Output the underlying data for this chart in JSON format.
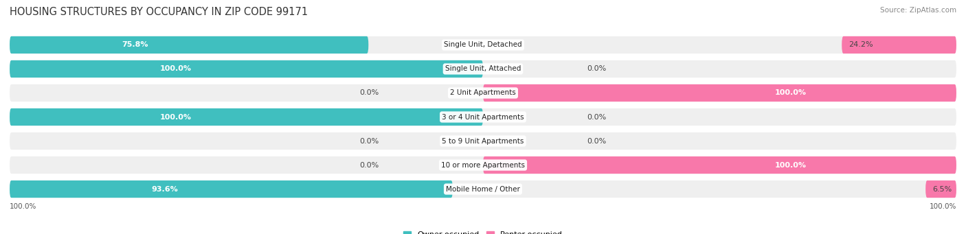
{
  "title": "HOUSING STRUCTURES BY OCCUPANCY IN ZIP CODE 99171",
  "source": "Source: ZipAtlas.com",
  "categories": [
    "Single Unit, Detached",
    "Single Unit, Attached",
    "2 Unit Apartments",
    "3 or 4 Unit Apartments",
    "5 to 9 Unit Apartments",
    "10 or more Apartments",
    "Mobile Home / Other"
  ],
  "owner_pct": [
    75.8,
    100.0,
    0.0,
    100.0,
    0.0,
    0.0,
    93.6
  ],
  "renter_pct": [
    24.2,
    0.0,
    100.0,
    0.0,
    0.0,
    100.0,
    6.5
  ],
  "owner_color": "#40bfbf",
  "renter_color": "#f878aa",
  "owner_color_light": "#99d9d9",
  "renter_color_light": "#f9c0d0",
  "row_bg_color": "#efefef",
  "row_gap_color": "#ffffff",
  "bar_height": 0.72,
  "title_fontsize": 10.5,
  "pct_fontsize": 8.0,
  "cat_fontsize": 7.5,
  "tick_fontsize": 7.5,
  "source_fontsize": 7.5,
  "legend_fontsize": 8.0
}
